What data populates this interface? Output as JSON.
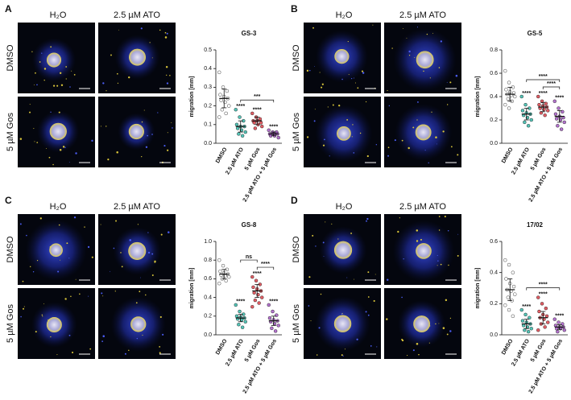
{
  "panels": [
    {
      "label": "A",
      "images": {
        "column_labels": [
          "H₂O",
          "2.5 µM ATO"
        ],
        "row_labels": [
          "DMSO",
          "5 µM Gos"
        ]
      },
      "chart_data": {
        "type": "dot",
        "title": "GS-3",
        "y_label": "migration [mm]",
        "categories": [
          "DMSO",
          "2.5 µM ATO",
          "5 µM Gos",
          "2.5 µM ATO + 5 µM Gos"
        ],
        "colors": [
          "#ffffff",
          "#2ab5a5",
          "#d9363e",
          "#a050c0"
        ],
        "points": [
          [
            0.38,
            0.3,
            0.28,
            0.26,
            0.25,
            0.24,
            0.23,
            0.22,
            0.2,
            0.18,
            0.16,
            0.14
          ],
          [
            0.18,
            0.14,
            0.12,
            0.1,
            0.09,
            0.09,
            0.08,
            0.07,
            0.06,
            0.05,
            0.04
          ],
          [
            0.16,
            0.14,
            0.13,
            0.12,
            0.12,
            0.11,
            0.11,
            0.1,
            0.09,
            0.08
          ],
          [
            0.07,
            0.06,
            0.06,
            0.05,
            0.05,
            0.05,
            0.04,
            0.04,
            0.03
          ]
        ],
        "means": [
          0.24,
          0.09,
          0.12,
          0.05
        ],
        "sds": [
          0.05,
          0.03,
          0.02,
          0.01
        ],
        "stars": [
          null,
          "****",
          "****",
          "****"
        ],
        "comparisons": [
          {
            "groups": [
              1,
              3
            ],
            "label": "***"
          }
        ],
        "ylim": [
          0,
          0.5
        ],
        "yticks": [
          {
            "value": 0,
            "label": "0.0"
          },
          0.1,
          0.2,
          0.3,
          0.4,
          0.5
        ]
      }
    },
    {
      "label": "B",
      "images": {
        "column_labels": [
          "H₂O",
          "2.5 µM ATO"
        ],
        "row_labels": [
          "DMSO",
          "5 µM Gos"
        ]
      },
      "chart_data": {
        "type": "dot",
        "title": "GS-5",
        "y_label": "migration [mm]",
        "categories": [
          "DMSO",
          "2.5 µM ATO",
          "5 µM Gos",
          "2.5 µM ATO + 5 µM Gos"
        ],
        "colors": [
          "#ffffff",
          "#2ab5a5",
          "#d9363e",
          "#a050c0"
        ],
        "points": [
          [
            0.62,
            0.52,
            0.48,
            0.46,
            0.44,
            0.43,
            0.42,
            0.41,
            0.4,
            0.38,
            0.36,
            0.33,
            0.3
          ],
          [
            0.4,
            0.33,
            0.3,
            0.28,
            0.26,
            0.25,
            0.24,
            0.22,
            0.2,
            0.18,
            0.15
          ],
          [
            0.4,
            0.36,
            0.34,
            0.33,
            0.32,
            0.31,
            0.3,
            0.29,
            0.28,
            0.26,
            0.24
          ],
          [
            0.36,
            0.3,
            0.27,
            0.25,
            0.23,
            0.22,
            0.21,
            0.2,
            0.18,
            0.15,
            0.12
          ]
        ],
        "means": [
          0.42,
          0.25,
          0.31,
          0.23
        ],
        "sds": [
          0.06,
          0.05,
          0.04,
          0.05
        ],
        "stars": [
          null,
          "****",
          "****",
          "****"
        ],
        "comparisons": [
          {
            "groups": [
              1,
              3
            ],
            "label": "****"
          },
          {
            "groups": [
              2,
              3
            ],
            "label": "****"
          }
        ],
        "ylim": [
          0,
          0.8
        ],
        "yticks": [
          {
            "value": 0,
            "label": "0.0"
          },
          0.2,
          0.4,
          0.6,
          0.8
        ]
      }
    },
    {
      "label": "C",
      "images": {
        "column_labels": [
          "H₂O",
          "2.5 µM ATO"
        ],
        "row_labels": [
          "DMSO",
          "5 µM Gos"
        ]
      },
      "chart_data": {
        "type": "dot",
        "title": "GS-8",
        "y_label": "migration [mm]",
        "categories": [
          "DMSO",
          "2.5 µM ATO",
          "5 µM Gos",
          "2.5 µM ATO + 5 µM Gos"
        ],
        "colors": [
          "#ffffff",
          "#2ab5a5",
          "#d9363e",
          "#a050c0"
        ],
        "points": [
          [
            0.8,
            0.74,
            0.7,
            0.68,
            0.66,
            0.65,
            0.64,
            0.63,
            0.62,
            0.6,
            0.58,
            0.55
          ],
          [
            0.32,
            0.25,
            0.22,
            0.2,
            0.19,
            0.18,
            0.17,
            0.16,
            0.14,
            0.11,
            0.08
          ],
          [
            0.62,
            0.58,
            0.54,
            0.51,
            0.49,
            0.47,
            0.45,
            0.43,
            0.4,
            0.37,
            0.34,
            0.3
          ],
          [
            0.32,
            0.25,
            0.21,
            0.18,
            0.16,
            0.15,
            0.14,
            0.12,
            0.1,
            0.07,
            0.04
          ]
        ],
        "means": [
          0.65,
          0.18,
          0.47,
          0.15
        ],
        "sds": [
          0.05,
          0.04,
          0.07,
          0.05
        ],
        "stars": [
          null,
          "****",
          "****",
          "****"
        ],
        "comparisons": [
          {
            "groups": [
              1,
              2
            ],
            "label": "ns"
          },
          {
            "groups": [
              2,
              3
            ],
            "label": "****"
          }
        ],
        "ylim": [
          0,
          1
        ],
        "yticks": [
          {
            "value": 0,
            "label": "0.0"
          },
          0.2,
          0.4,
          0.6,
          0.8,
          {
            "value": 1,
            "label": "1.0"
          }
        ]
      }
    },
    {
      "label": "D",
      "images": {
        "column_labels": [
          "H₂O",
          "2.5 µM ATO"
        ],
        "row_labels": [
          "DMSO",
          "5 µM Gos"
        ]
      },
      "chart_data": {
        "type": "dot",
        "title": "17/02",
        "y_label": "migration [mm]",
        "categories": [
          "DMSO",
          "2.5 µM ATO",
          "5 µM Gos",
          "2.5 µM ATO + 5 µM Gos"
        ],
        "colors": [
          "#ffffff",
          "#2ab5a5",
          "#d9363e",
          "#a050c0"
        ],
        "points": [
          [
            0.48,
            0.45,
            0.4,
            0.36,
            0.33,
            0.31,
            0.29,
            0.28,
            0.26,
            0.24,
            0.22,
            0.19,
            0.16,
            0.12
          ],
          [
            0.16,
            0.13,
            0.11,
            0.09,
            0.08,
            0.07,
            0.06,
            0.05,
            0.04,
            0.03,
            0.02
          ],
          [
            0.24,
            0.2,
            0.17,
            0.15,
            0.13,
            0.12,
            0.11,
            0.1,
            0.08,
            0.07,
            0.05,
            0.03
          ],
          [
            0.1,
            0.08,
            0.07,
            0.06,
            0.05,
            0.05,
            0.04,
            0.04,
            0.03,
            0.02
          ]
        ],
        "means": [
          0.29,
          0.07,
          0.11,
          0.05
        ],
        "sds": [
          0.07,
          0.03,
          0.04,
          0.015
        ],
        "stars": [
          null,
          "****",
          "****",
          "****"
        ],
        "comparisons": [
          {
            "groups": [
              1,
              3
            ],
            "label": "****"
          }
        ],
        "ylim": [
          0,
          0.6
        ],
        "yticks": [
          {
            "value": 0,
            "label": "0.0"
          },
          0.2,
          0.4,
          0.6
        ]
      }
    }
  ]
}
